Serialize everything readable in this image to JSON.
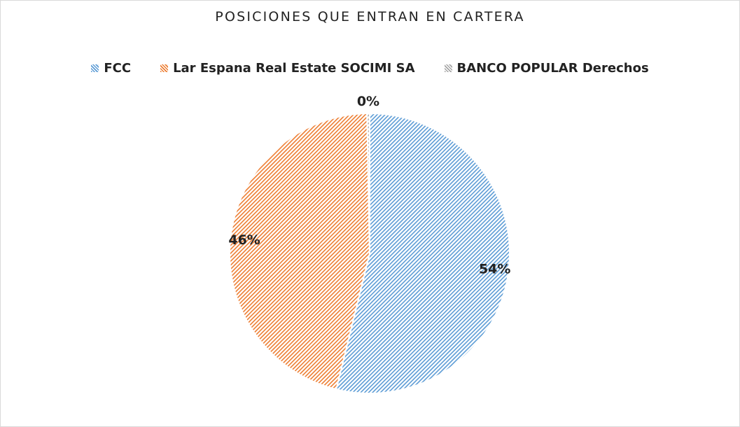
{
  "chart_data": {
    "type": "pie",
    "title": "POSICIONES QUE ENTRAN EN CARTERA",
    "legend_position": "top",
    "slices": [
      {
        "name": "FCC",
        "value": 54,
        "label": "54%",
        "color": "#5b9bd5",
        "pattern": "diagonal-hatch"
      },
      {
        "name": "Lar Espana Real Estate SOCIMI SA",
        "value": 46,
        "label": "46%",
        "color": "#ed7d31",
        "pattern": "diagonal-hatch"
      },
      {
        "name": "BANCO POPULAR Derechos",
        "value": 0.3,
        "label": "0%",
        "color": "#a5a5a5",
        "pattern": "diagonal-hatch"
      }
    ]
  }
}
